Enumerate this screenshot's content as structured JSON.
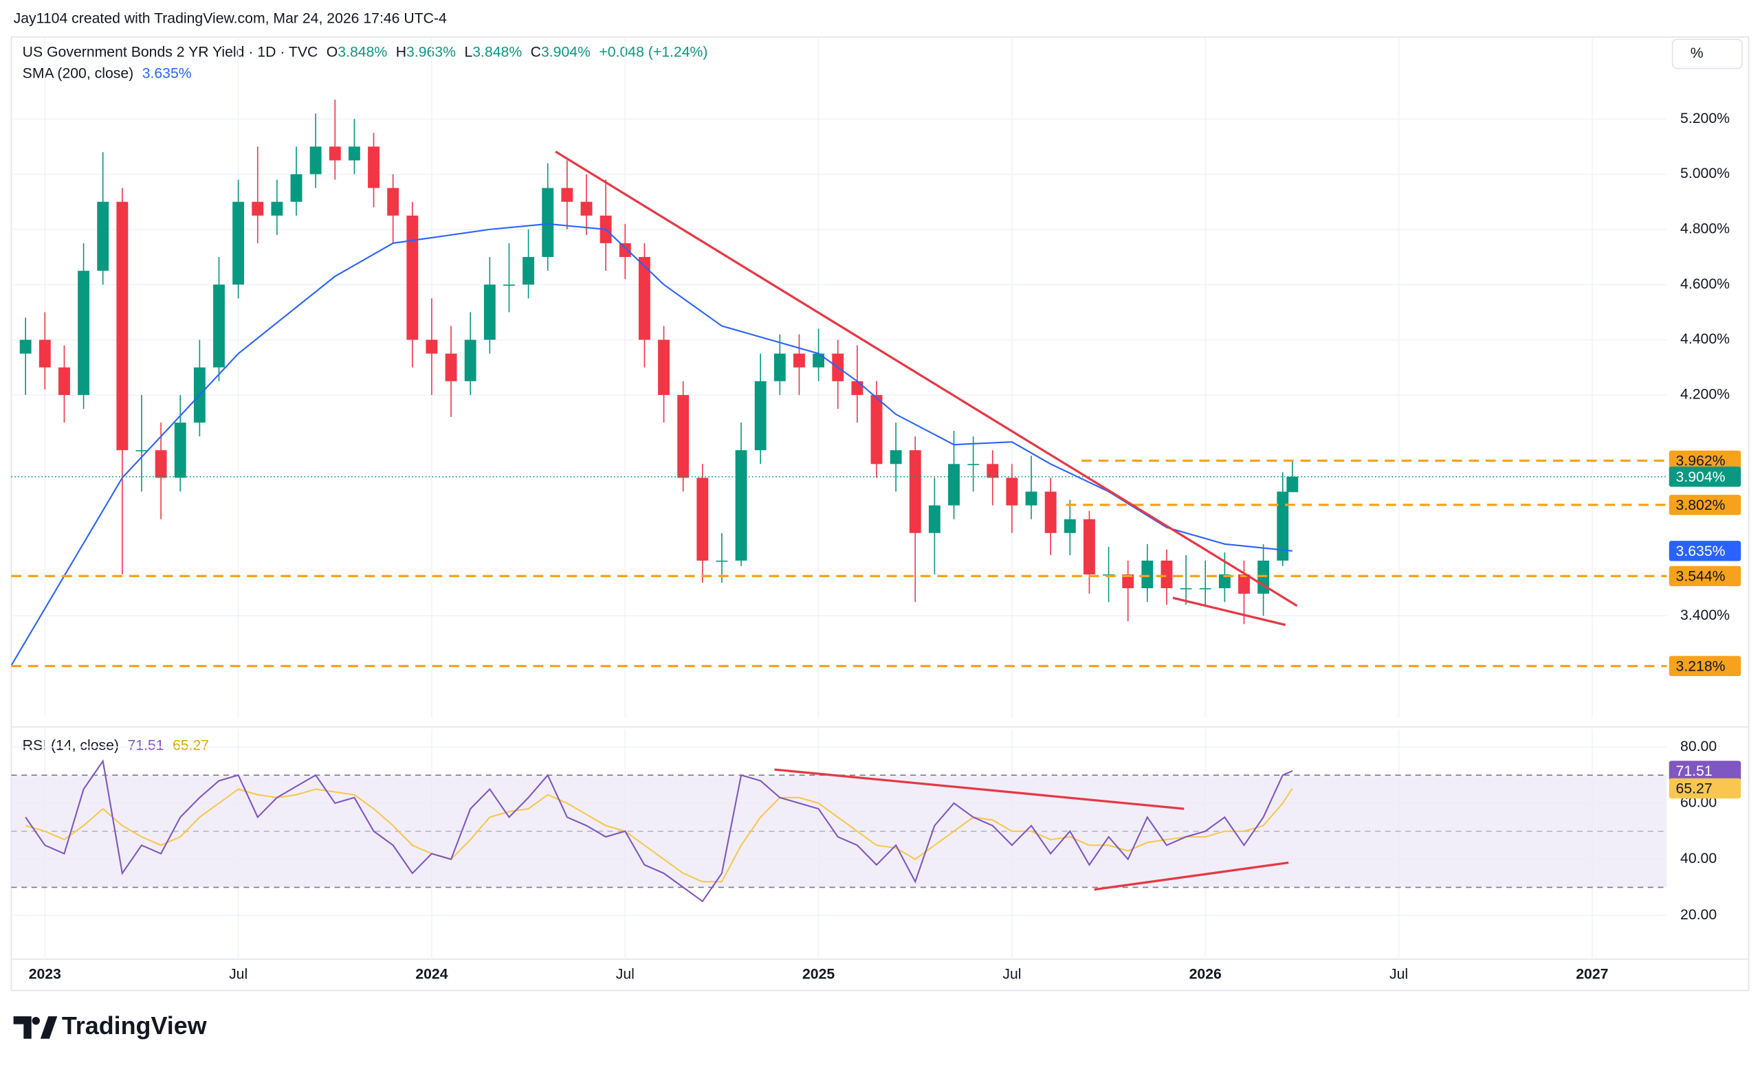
{
  "header": {
    "attribution": "Jay1104 created with TradingView.com, Mar 24, 2026 17:46 UTC-4",
    "unit_button": "%"
  },
  "footer": {
    "logo": "TradingView"
  },
  "chart_data": [
    {
      "type": "candlestick",
      "title": "US Government Bonds 2 YR Yield · 1D · TVC",
      "legend": {
        "o_label": "O",
        "o": "3.848%",
        "h_label": "H",
        "h": "3.963%",
        "l_label": "L",
        "l": "3.848%",
        "c_label": "C",
        "c": "3.904%",
        "change": "+0.048 (+1.24%)"
      },
      "up_color": "#089981",
      "down_color": "#f23645",
      "close_label": "3.904%",
      "x": [
        2022.95,
        2023.0,
        2023.05,
        2023.1,
        2023.15,
        2023.2,
        2023.25,
        2023.3,
        2023.35,
        2023.4,
        2023.45,
        2023.5,
        2023.55,
        2023.6,
        2023.65,
        2023.7,
        2023.75,
        2023.8,
        2023.85,
        2023.9,
        2023.95,
        2024.0,
        2024.05,
        2024.1,
        2024.15,
        2024.2,
        2024.25,
        2024.3,
        2024.35,
        2024.4,
        2024.45,
        2024.5,
        2024.55,
        2024.6,
        2024.65,
        2024.7,
        2024.75,
        2024.8,
        2024.85,
        2024.9,
        2024.95,
        2025.0,
        2025.05,
        2025.1,
        2025.15,
        2025.2,
        2025.25,
        2025.3,
        2025.35,
        2025.4,
        2025.45,
        2025.5,
        2025.55,
        2025.6,
        2025.65,
        2025.7,
        2025.75,
        2025.8,
        2025.85,
        2025.9,
        2025.95,
        2026.0,
        2026.05,
        2026.1,
        2026.15,
        2026.2,
        2026.225
      ],
      "open": [
        4.35,
        4.4,
        4.3,
        4.2,
        4.65,
        4.9,
        4.0,
        4.0,
        3.9,
        4.1,
        4.3,
        4.6,
        4.9,
        4.85,
        4.9,
        5.0,
        5.1,
        5.05,
        5.1,
        4.95,
        4.85,
        4.4,
        4.35,
        4.25,
        4.4,
        4.6,
        4.6,
        4.7,
        4.95,
        4.9,
        4.85,
        4.75,
        4.7,
        4.4,
        4.2,
        3.9,
        3.6,
        3.6,
        4.0,
        4.25,
        4.35,
        4.3,
        4.35,
        4.25,
        4.2,
        3.95,
        4.0,
        3.7,
        3.8,
        3.95,
        3.95,
        3.9,
        3.8,
        3.85,
        3.7,
        3.75,
        3.55,
        3.55,
        3.5,
        3.6,
        3.5,
        3.5,
        3.5,
        3.55,
        3.48,
        3.6,
        3.848
      ],
      "high": [
        4.48,
        4.5,
        4.38,
        4.75,
        5.08,
        4.95,
        4.2,
        4.1,
        4.2,
        4.4,
        4.7,
        4.98,
        5.1,
        4.98,
        5.1,
        5.22,
        5.27,
        5.2,
        5.15,
        5.0,
        4.9,
        4.55,
        4.45,
        4.5,
        4.7,
        4.75,
        4.8,
        5.04,
        5.05,
        5.0,
        4.98,
        4.82,
        4.75,
        4.45,
        4.25,
        3.95,
        3.7,
        4.1,
        4.35,
        4.42,
        4.42,
        4.44,
        4.4,
        4.38,
        4.25,
        4.1,
        4.05,
        3.9,
        4.07,
        4.05,
        4.0,
        3.95,
        3.98,
        3.9,
        3.82,
        3.78,
        3.65,
        3.6,
        3.66,
        3.64,
        3.62,
        3.6,
        3.63,
        3.6,
        3.66,
        3.92,
        3.963
      ],
      "low": [
        4.2,
        4.22,
        4.1,
        4.15,
        4.6,
        3.55,
        3.85,
        3.75,
        3.85,
        4.05,
        4.25,
        4.55,
        4.75,
        4.78,
        4.85,
        4.95,
        4.98,
        5.0,
        4.88,
        4.75,
        4.3,
        4.2,
        4.12,
        4.2,
        4.35,
        4.5,
        4.55,
        4.65,
        4.8,
        4.78,
        4.65,
        4.62,
        4.3,
        4.1,
        3.85,
        3.52,
        3.52,
        3.58,
        3.95,
        4.2,
        4.2,
        4.25,
        4.15,
        4.1,
        3.9,
        3.85,
        3.45,
        3.55,
        3.75,
        3.85,
        3.8,
        3.7,
        3.75,
        3.62,
        3.62,
        3.48,
        3.45,
        3.38,
        3.45,
        3.44,
        3.44,
        3.44,
        3.45,
        3.37,
        3.4,
        3.58,
        3.848
      ],
      "close": [
        4.4,
        4.3,
        4.2,
        4.65,
        4.9,
        4.0,
        4.0,
        3.9,
        4.1,
        4.3,
        4.6,
        4.9,
        4.85,
        4.9,
        5.0,
        5.1,
        5.05,
        5.1,
        4.95,
        4.85,
        4.4,
        4.35,
        4.25,
        4.4,
        4.6,
        4.6,
        4.7,
        4.95,
        4.9,
        4.85,
        4.75,
        4.7,
        4.4,
        4.2,
        3.9,
        3.6,
        3.6,
        4.0,
        4.25,
        4.35,
        4.3,
        4.35,
        4.25,
        4.2,
        3.95,
        4.0,
        3.7,
        3.8,
        3.95,
        3.95,
        3.9,
        3.8,
        3.85,
        3.7,
        3.75,
        3.55,
        3.55,
        3.5,
        3.6,
        3.5,
        3.5,
        3.5,
        3.55,
        3.48,
        3.6,
        3.85,
        3.904
      ],
      "xlim": [
        2022.913,
        2027.193
      ],
      "ylim": [
        3.03,
        5.497
      ],
      "xticks": [
        {
          "value": 2023,
          "label": "2023"
        },
        {
          "value": 2023.5,
          "label": "Jul"
        },
        {
          "value": 2024,
          "label": "2024"
        },
        {
          "value": 2024.5,
          "label": "Jul"
        },
        {
          "value": 2025,
          "label": "2025"
        },
        {
          "value": 2025.5,
          "label": "Jul"
        },
        {
          "value": 2026,
          "label": "2026"
        },
        {
          "value": 2026.5,
          "label": "Jul"
        },
        {
          "value": 2027,
          "label": "2027"
        }
      ],
      "yticks": [
        {
          "value": 5.2,
          "label": "5.200%"
        },
        {
          "value": 5.0,
          "label": "5.000%"
        },
        {
          "value": 4.8,
          "label": "4.800%"
        },
        {
          "value": 4.6,
          "label": "4.600%"
        },
        {
          "value": 4.4,
          "label": "4.400%"
        },
        {
          "value": 4.2,
          "label": "4.200%"
        },
        {
          "value": 3.4,
          "label": "3.400%"
        }
      ],
      "grid": true,
      "overlays": [
        {
          "type": "line",
          "name": "SMA (200, close)",
          "last_label": "3.635%",
          "color": "#2962ff",
          "x": [
            2022.913,
            2023.2,
            2023.5,
            2023.75,
            2023.9,
            2024.0,
            2024.15,
            2024.3,
            2024.45,
            2024.6,
            2024.75,
            2024.85,
            2025.0,
            2025.1,
            2025.2,
            2025.35,
            2025.5,
            2025.6,
            2025.75,
            2025.9,
            2026.05,
            2026.225
          ],
          "values": [
            3.22,
            3.9,
            4.35,
            4.63,
            4.75,
            4.77,
            4.8,
            4.82,
            4.8,
            4.6,
            4.45,
            4.41,
            4.35,
            4.25,
            4.13,
            4.02,
            4.03,
            3.95,
            3.85,
            3.72,
            3.66,
            3.635
          ]
        }
      ],
      "levels": [
        {
          "value": 3.962,
          "label": "3.962%",
          "x_start": 2025.68,
          "color": "#f7a21b"
        },
        {
          "value": 3.802,
          "label": "3.802%",
          "x_start": 2025.64,
          "color": "#f7a21b"
        },
        {
          "value": 3.544,
          "label": "3.544%",
          "color": "#f7a21b"
        },
        {
          "value": 3.218,
          "label": "3.218%",
          "color": "#f7a21b"
        }
      ],
      "trendlines": [
        {
          "x": [
            2024.32,
            2026.237
          ],
          "values": [
            5.082,
            3.436
          ],
          "color": "#e53945"
        },
        {
          "x": [
            2025.916,
            2026.207
          ],
          "values": [
            3.465,
            3.367
          ],
          "color": "#e53945"
        }
      ]
    },
    {
      "type": "line",
      "title": "RSI (14, close)",
      "x": [
        2022.95,
        2023.0,
        2023.05,
        2023.1,
        2023.15,
        2023.2,
        2023.25,
        2023.3,
        2023.35,
        2023.4,
        2023.45,
        2023.5,
        2023.55,
        2023.6,
        2023.65,
        2023.7,
        2023.75,
        2023.8,
        2023.85,
        2023.9,
        2023.95,
        2024.0,
        2024.05,
        2024.1,
        2024.15,
        2024.2,
        2024.25,
        2024.3,
        2024.35,
        2024.4,
        2024.45,
        2024.5,
        2024.55,
        2024.6,
        2024.65,
        2024.7,
        2024.75,
        2024.8,
        2024.85,
        2024.9,
        2024.95,
        2025.0,
        2025.05,
        2025.1,
        2025.15,
        2025.2,
        2025.25,
        2025.3,
        2025.35,
        2025.4,
        2025.45,
        2025.5,
        2025.55,
        2025.6,
        2025.65,
        2025.7,
        2025.75,
        2025.8,
        2025.85,
        2025.9,
        2025.95,
        2026.0,
        2026.05,
        2026.1,
        2026.15,
        2026.2,
        2026.225
      ],
      "series": [
        {
          "color": "#7e57c2",
          "badge_text": "#ffffff",
          "values": [
            55,
            45,
            42,
            65,
            75,
            35,
            45,
            42,
            55,
            62,
            68,
            70,
            55,
            62,
            66,
            70,
            60,
            62,
            50,
            45,
            35,
            42,
            40,
            58,
            65,
            55,
            62,
            70,
            55,
            52,
            48,
            50,
            38,
            35,
            30,
            25,
            35,
            70,
            68,
            62,
            60,
            58,
            48,
            45,
            38,
            45,
            32,
            52,
            60,
            55,
            52,
            45,
            52,
            42,
            50,
            38,
            48,
            40,
            55,
            45,
            48,
            50,
            55,
            45,
            55,
            70,
            71.51
          ]
        },
        {
          "color": "#f9c74f",
          "badge_text": "#131722",
          "values": [
            52,
            50,
            47,
            52,
            58,
            52,
            48,
            45,
            48,
            55,
            60,
            65,
            63,
            62,
            63,
            65,
            64,
            63,
            58,
            52,
            45,
            42,
            40,
            47,
            55,
            57,
            58,
            63,
            60,
            56,
            52,
            50,
            45,
            40,
            35,
            32,
            32,
            45,
            55,
            62,
            62,
            60,
            55,
            50,
            45,
            44,
            40,
            45,
            50,
            55,
            54,
            50,
            50,
            47,
            48,
            45,
            45,
            43,
            46,
            47,
            48,
            48,
            50,
            50,
            52,
            60,
            65.27
          ]
        }
      ],
      "xlim": [
        2022.913,
        2027.193
      ],
      "ylim": [
        4.4,
        86.4
      ],
      "yticks": [
        {
          "value": 80,
          "label": "80.00"
        },
        {
          "value": 60,
          "label": "60.00"
        },
        {
          "value": 40,
          "label": "40.00"
        },
        {
          "value": 20,
          "label": "20.00"
        }
      ],
      "band": [
        30,
        70
      ],
      "midline": 50,
      "band_color": "#ede7f6",
      "trendlines": [
        {
          "x": [
            2024.886,
            2025.945
          ],
          "values": [
            72,
            58
          ],
          "color": "#e53945"
        },
        {
          "x": [
            2025.713,
            2026.215
          ],
          "values": [
            29.2,
            38.8
          ],
          "color": "#e53945"
        }
      ]
    }
  ]
}
